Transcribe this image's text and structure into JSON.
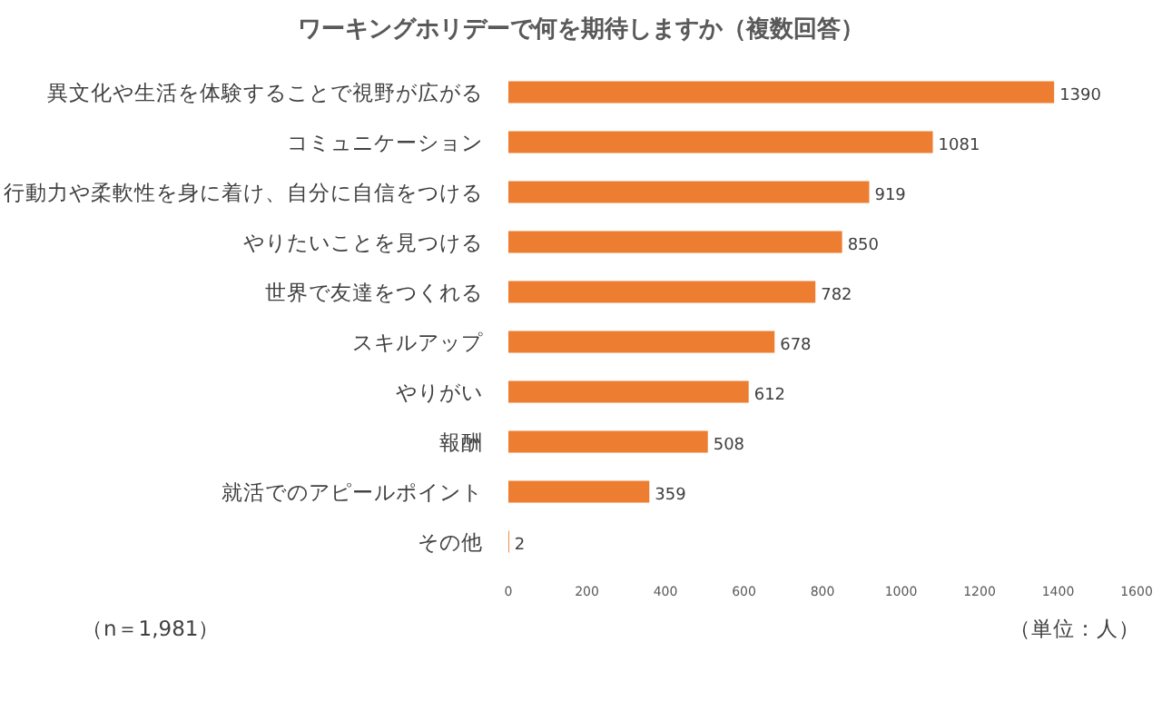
{
  "chart_data": {
    "type": "bar",
    "orientation": "horizontal",
    "title": "ワーキングホリデーで何を期待しますか（複数回答）",
    "categories": [
      "異文化や生活を体験することで視野が広がる",
      "コミュニケーション",
      "行動力や柔軟性を身に着け、自分に自信をつける",
      "やりたいことを見つける",
      "世界で友達をつくれる",
      "スキルアップ",
      "やりがい",
      "報酬",
      "就活でのアピールポイント",
      "その他"
    ],
    "values": [
      1390,
      1081,
      919,
      850,
      782,
      678,
      612,
      508,
      359,
      2
    ],
    "color": "#ed7d31",
    "xlim": [
      0,
      1600
    ],
    "xticks": [
      0,
      200,
      400,
      600,
      800,
      1000,
      1200,
      1400,
      1600
    ],
    "data_labels": true,
    "annotations": [
      "（n＝1,981）",
      "（単位：人）"
    ]
  }
}
